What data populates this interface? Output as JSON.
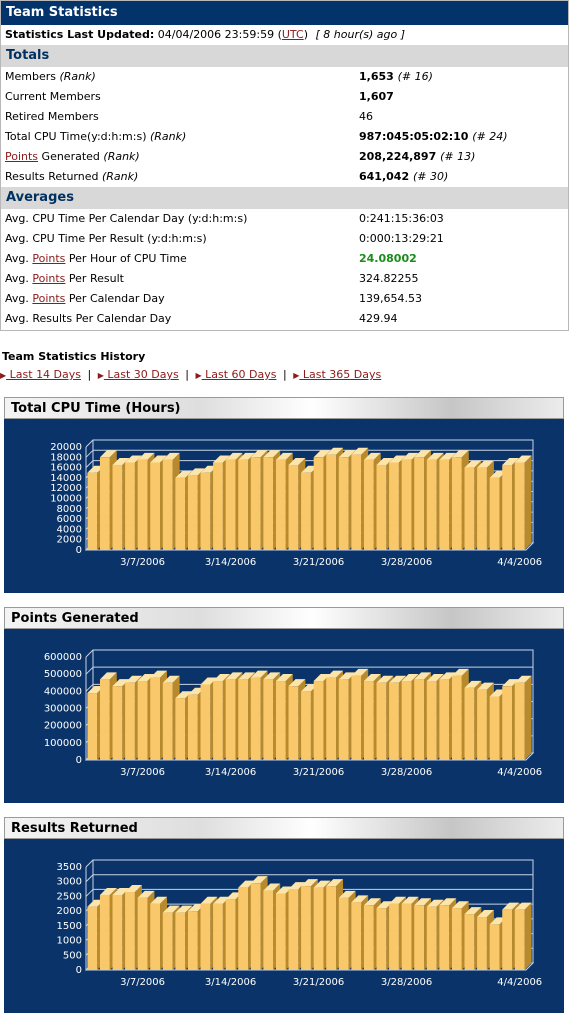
{
  "header": {
    "title": "Team Statistics"
  },
  "updated": {
    "label": "Statistics Last Updated:",
    "date": "04/04/2006 23:59:59 (",
    "tz": "UTC",
    "close": ")",
    "ago": "[ 8 hour(s) ago ]"
  },
  "totals": {
    "heading": "Totals",
    "members": {
      "label": "Members",
      "rank_label": "(Rank)",
      "value": "1,653",
      "rank": "(# 16)"
    },
    "current": {
      "label": "Current Members",
      "value": "1,607"
    },
    "retired": {
      "label": "Retired Members",
      "value": "46"
    },
    "cpu": {
      "label": "Total CPU Time(y:d:h:m:s)",
      "rank_label": "(Rank)",
      "value": "987:045:05:02:10",
      "rank": "(# 24)"
    },
    "points": {
      "link": "Points",
      "label": " Generated",
      "rank_label": "(Rank)",
      "value": "208,224,897",
      "rank": "(# 13)"
    },
    "results": {
      "label": "Results Returned",
      "rank_label": "(Rank)",
      "value": "641,042",
      "rank": "(# 30)"
    }
  },
  "averages": {
    "heading": "Averages",
    "cpu_day": {
      "label": "Avg. CPU Time Per Calendar Day (y:d:h:m:s)",
      "value": "0:241:15:36:03"
    },
    "cpu_result": {
      "label": "Avg. CPU Time Per Result (y:d:h:m:s)",
      "value": "0:000:13:29:21"
    },
    "pts_hour": {
      "prefix": "Avg. ",
      "link": "Points",
      "suffix": " Per Hour of CPU Time",
      "value": "24.08002"
    },
    "pts_result": {
      "prefix": "Avg. ",
      "link": "Points",
      "suffix": " Per Result",
      "value": "324.82255"
    },
    "pts_day": {
      "prefix": "Avg. ",
      "link": "Points",
      "suffix": " Per Calendar Day",
      "value": "139,654.53"
    },
    "res_day": {
      "label": "Avg. Results Per Calendar Day",
      "value": "429.94"
    }
  },
  "history": {
    "title": "Team Statistics History",
    "links": [
      " Last 14 Days",
      " Last 30 Days",
      " Last 60 Days",
      " Last 365 Days"
    ],
    "sep": "|"
  },
  "colors": {
    "bar_face": "#f9c86a",
    "bar_top": "#fde4a8",
    "bar_side": "#b98a2c",
    "panel_bg": "#0a3469",
    "brand": "#03336b"
  },
  "chart_data": [
    {
      "type": "bar",
      "title": "Total CPU Time (Hours)",
      "x_tick_labels": [
        "3/7/2006",
        "3/14/2006",
        "3/21/2006",
        "3/28/2006",
        "4/4/2006"
      ],
      "ylim": [
        0,
        20000
      ],
      "yticks": [
        0,
        2000,
        4000,
        6000,
        8000,
        10000,
        12000,
        14000,
        16000,
        18000,
        20000
      ],
      "values": [
        15000,
        18000,
        16500,
        17000,
        17500,
        17000,
        17500,
        14000,
        14500,
        15000,
        17000,
        17500,
        17500,
        18000,
        18000,
        17500,
        16500,
        15000,
        18000,
        18500,
        18000,
        18500,
        17500,
        16500,
        17000,
        17500,
        18000,
        17500,
        17500,
        18000,
        16000,
        16000,
        14000,
        16500,
        17000
      ]
    },
    {
      "type": "bar",
      "title": "Points Generated",
      "x_tick_labels": [
        "3/7/2006",
        "3/14/2006",
        "3/21/2006",
        "3/28/2006",
        "4/4/2006"
      ],
      "ylim": [
        0,
        600000
      ],
      "yticks": [
        0,
        100000,
        200000,
        300000,
        400000,
        500000,
        600000
      ],
      "values": [
        390000,
        470000,
        430000,
        450000,
        460000,
        480000,
        450000,
        360000,
        380000,
        440000,
        460000,
        470000,
        470000,
        480000,
        470000,
        460000,
        430000,
        400000,
        460000,
        480000,
        470000,
        490000,
        460000,
        450000,
        450000,
        460000,
        470000,
        460000,
        470000,
        490000,
        420000,
        410000,
        370000,
        430000,
        450000
      ]
    },
    {
      "type": "bar",
      "title": "Results Returned",
      "x_tick_labels": [
        "3/7/2006",
        "3/14/2006",
        "3/21/2006",
        "3/28/2006",
        "4/4/2006"
      ],
      "ylim": [
        0,
        3500
      ],
      "yticks": [
        0,
        500,
        1000,
        1500,
        2000,
        2500,
        3000,
        3500
      ],
      "values": [
        2150,
        2550,
        2550,
        2650,
        2450,
        2250,
        1950,
        1950,
        2000,
        2250,
        2250,
        2400,
        2800,
        2950,
        2700,
        2600,
        2750,
        2850,
        2800,
        2850,
        2450,
        2300,
        2200,
        2100,
        2250,
        2250,
        2200,
        2150,
        2200,
        2100,
        1900,
        1800,
        1550,
        2050,
        2050
      ]
    }
  ]
}
